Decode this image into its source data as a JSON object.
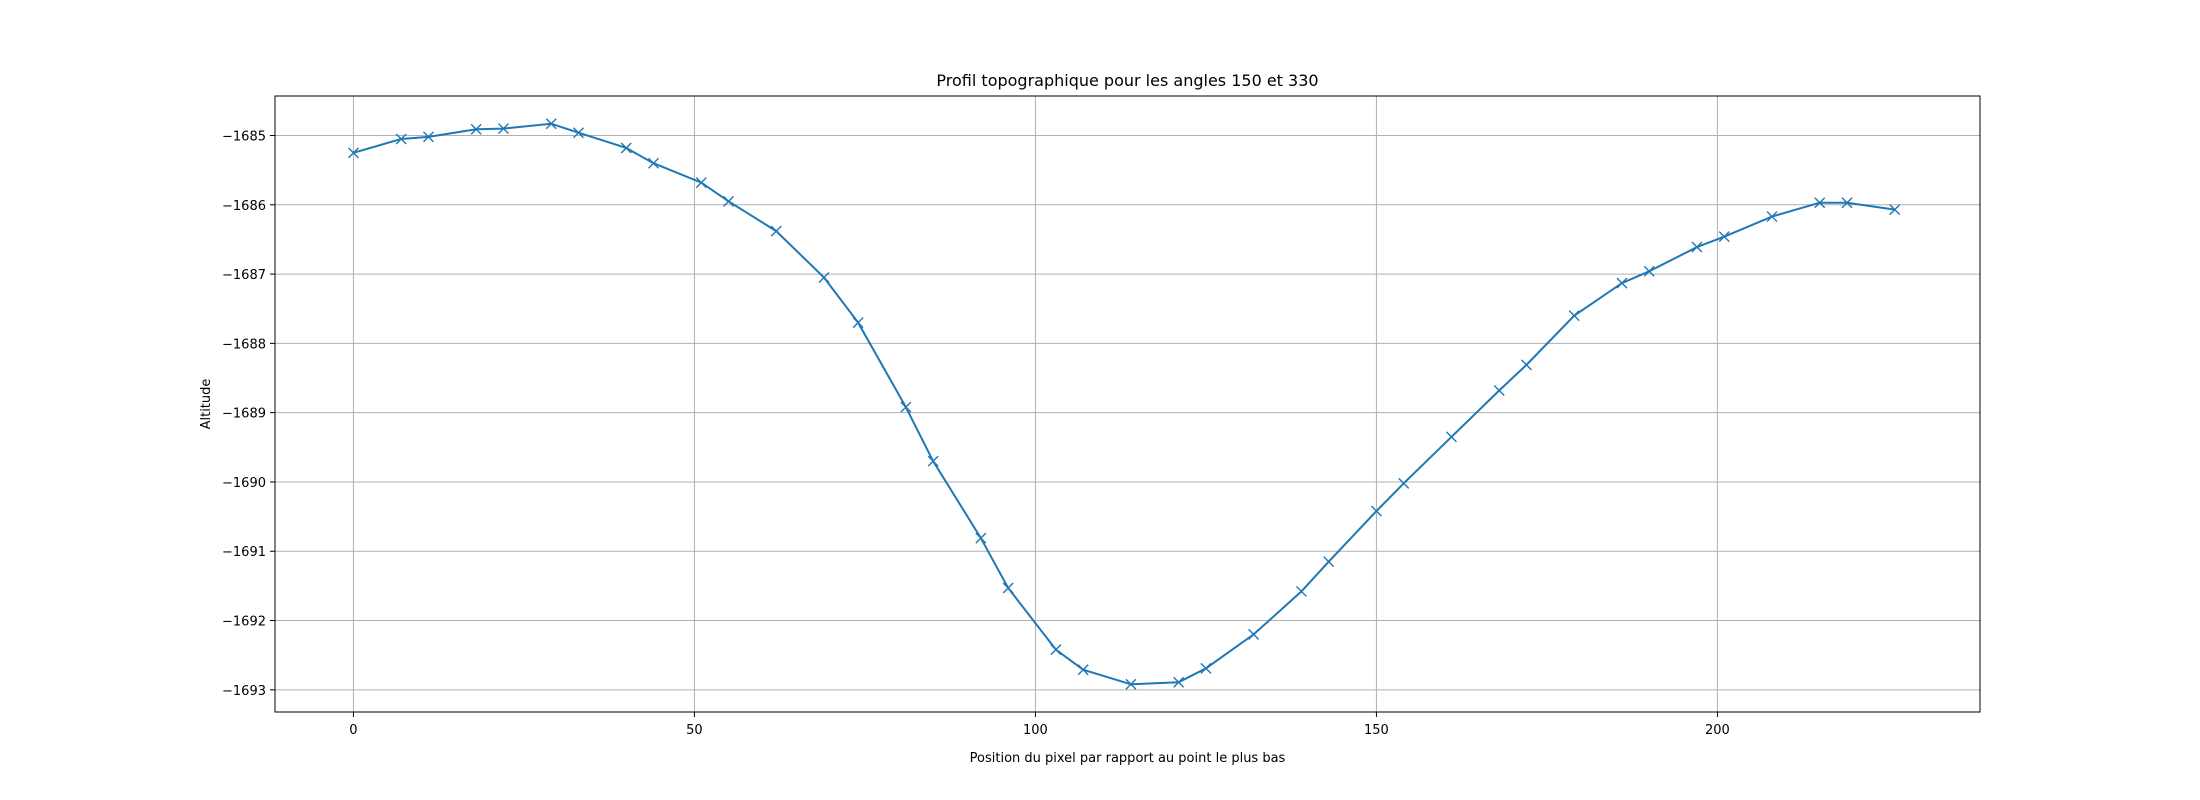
{
  "chart_data": {
    "type": "line",
    "title": "Profil topographique pour les angles 150 et 330",
    "xlabel": "Position du pixel par rapport au point le plus bas",
    "ylabel": "Altitude",
    "xlim": [
      -11.5,
      238.5
    ],
    "ylim": [
      -1693.32,
      -1684.43
    ],
    "xticks": [
      0,
      50,
      100,
      150,
      200
    ],
    "yticks": [
      -1685,
      -1686,
      -1687,
      -1688,
      -1689,
      -1690,
      -1691,
      -1692,
      -1693
    ],
    "grid": true,
    "legend": "none",
    "marker": "x",
    "color": "#1f77b4",
    "x": [
      0,
      7,
      11,
      18,
      22,
      29,
      33,
      40,
      44,
      51,
      55,
      62,
      69,
      74,
      81,
      85,
      92,
      96,
      103,
      107,
      114,
      121,
      125,
      132,
      139,
      143,
      150,
      154,
      161,
      168,
      172,
      179,
      186,
      190,
      197,
      201,
      208,
      215,
      219,
      226
    ],
    "values": [
      -1685.25,
      -1685.05,
      -1685.02,
      -1684.91,
      -1684.9,
      -1684.83,
      -1684.96,
      -1685.18,
      -1685.4,
      -1685.68,
      -1685.95,
      -1686.38,
      -1687.05,
      -1687.7,
      -1688.92,
      -1689.7,
      -1690.81,
      -1691.53,
      -1692.42,
      -1692.71,
      -1692.92,
      -1692.89,
      -1692.69,
      -1692.2,
      -1691.58,
      -1691.15,
      -1690.42,
      -1690.02,
      -1689.35,
      -1688.68,
      -1688.31,
      -1687.6,
      -1687.13,
      -1686.96,
      -1686.61,
      -1686.46,
      -1686.17,
      -1685.97,
      -1685.97,
      -1686.07
    ]
  }
}
